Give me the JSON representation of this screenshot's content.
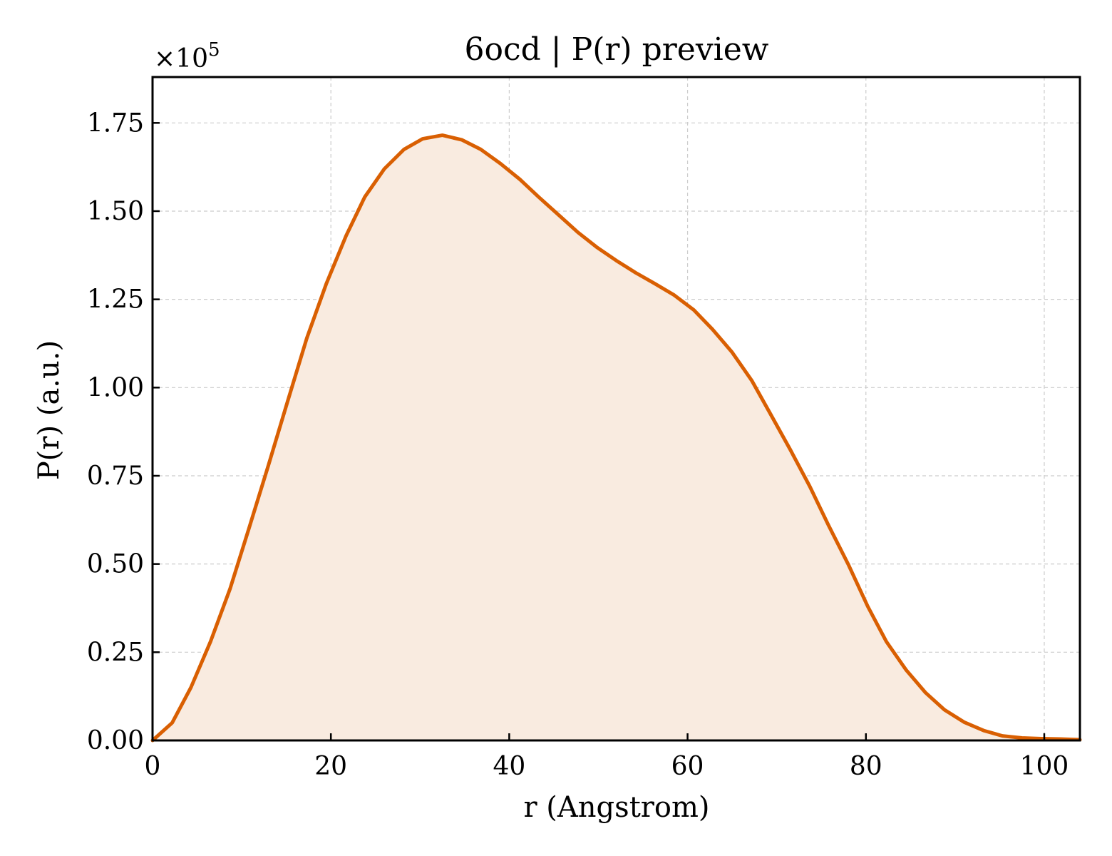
{
  "chart_data": {
    "type": "area",
    "title": "6ocd | P(r) preview",
    "xlabel": "r (Angstrom)",
    "ylabel": "P(r) (a.u.)",
    "y_multiplier": "×10",
    "y_multiplier_exp": "5",
    "xlim": [
      0,
      104
    ],
    "ylim": [
      0,
      1.88
    ],
    "xticks": [
      0,
      20,
      40,
      60,
      80,
      100
    ],
    "xtick_labels": [
      "0",
      "20",
      "40",
      "60",
      "80",
      "100"
    ],
    "yticks": [
      0,
      0.25,
      0.5,
      0.75,
      1.0,
      1.25,
      1.5,
      1.75
    ],
    "ytick_labels": [
      "0.00",
      "0.25",
      "0.50",
      "0.75",
      "1.00",
      "1.25",
      "1.50",
      "1.75"
    ],
    "grid": true,
    "line_color": "#d95f02",
    "fill_color": "#f9ebe0",
    "series": [
      {
        "x": [
          0,
          2.2,
          4.3,
          6.5,
          8.7,
          10.8,
          13.0,
          15.2,
          17.3,
          19.5,
          21.7,
          23.8,
          26.0,
          28.2,
          30.3,
          32.5,
          34.7,
          36.8,
          39.0,
          41.2,
          43.3,
          45.5,
          47.7,
          49.8,
          52.0,
          54.2,
          56.3,
          58.5,
          60.7,
          62.8,
          65.0,
          67.2,
          69.3,
          71.5,
          73.7,
          75.8,
          78.0,
          80.2,
          82.3,
          84.5,
          86.7,
          88.8,
          91.0,
          93.2,
          95.3,
          97.5,
          99.7,
          101.8,
          104.0
        ],
        "y": [
          0.0,
          0.05,
          0.15,
          0.28,
          0.43,
          0.6,
          0.78,
          0.965,
          1.14,
          1.295,
          1.43,
          1.54,
          1.62,
          1.675,
          1.705,
          1.715,
          1.702,
          1.675,
          1.635,
          1.59,
          1.54,
          1.49,
          1.44,
          1.398,
          1.36,
          1.325,
          1.295,
          1.262,
          1.22,
          1.165,
          1.1,
          1.02,
          0.925,
          0.825,
          0.72,
          0.61,
          0.5,
          0.38,
          0.28,
          0.2,
          0.135,
          0.087,
          0.052,
          0.028,
          0.013,
          0.007,
          0.005,
          0.004,
          0.002
        ]
      }
    ]
  }
}
